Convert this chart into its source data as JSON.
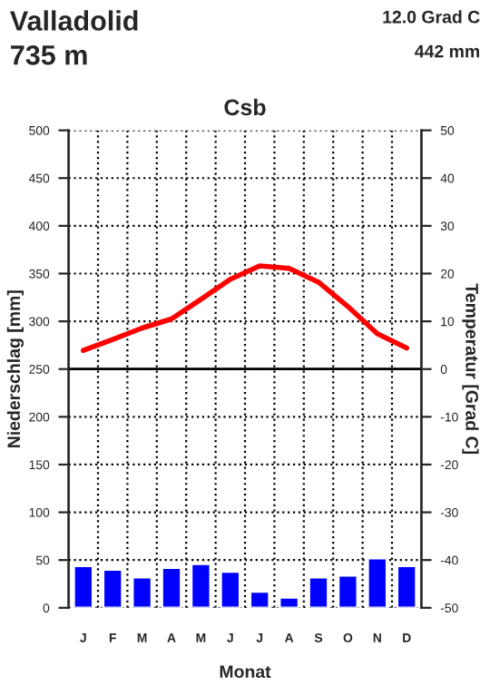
{
  "chart_data": {
    "type": "bar",
    "title": "Csb",
    "xlabel": "Monat",
    "ylabel": "Niederschlag [mm]",
    "y2label": "Temperatur [Grad C]",
    "annotations": [
      "Valladolid",
      "735 m",
      "12.0 Grad C",
      "442 mm"
    ],
    "categories": [
      "J",
      "F",
      "M",
      "A",
      "M",
      "J",
      "J",
      "A",
      "S",
      "O",
      "N",
      "D"
    ],
    "series": [
      {
        "color": "#0000ff",
        "values": [
          44,
          40,
          32,
          42,
          46,
          38,
          17,
          11,
          32,
          34,
          52,
          44
        ]
      },
      {
        "type": "line",
        "axis": "y2",
        "color": "#ff0000",
        "values": [
          3.9,
          6.2,
          8.6,
          10.5,
          14.6,
          18.8,
          21.6,
          21.1,
          18.2,
          13.1,
          7.4,
          4.4
        ]
      }
    ],
    "ylim": [
      0,
      500
    ],
    "yticks": [
      0,
      50,
      100,
      150,
      200,
      250,
      300,
      350,
      400,
      450,
      500
    ],
    "y2lim": [
      -50,
      50
    ],
    "y2ticks": [
      -50,
      -40,
      -30,
      -20,
      -10,
      0,
      10,
      20,
      30,
      40,
      50
    ],
    "ref_lines": [
      {
        "axis": "y2",
        "value": 0,
        "color": "#000000",
        "line_style": "solid"
      }
    ],
    "grid": true,
    "legend": false,
    "marker": "none",
    "line_style": "solid"
  }
}
